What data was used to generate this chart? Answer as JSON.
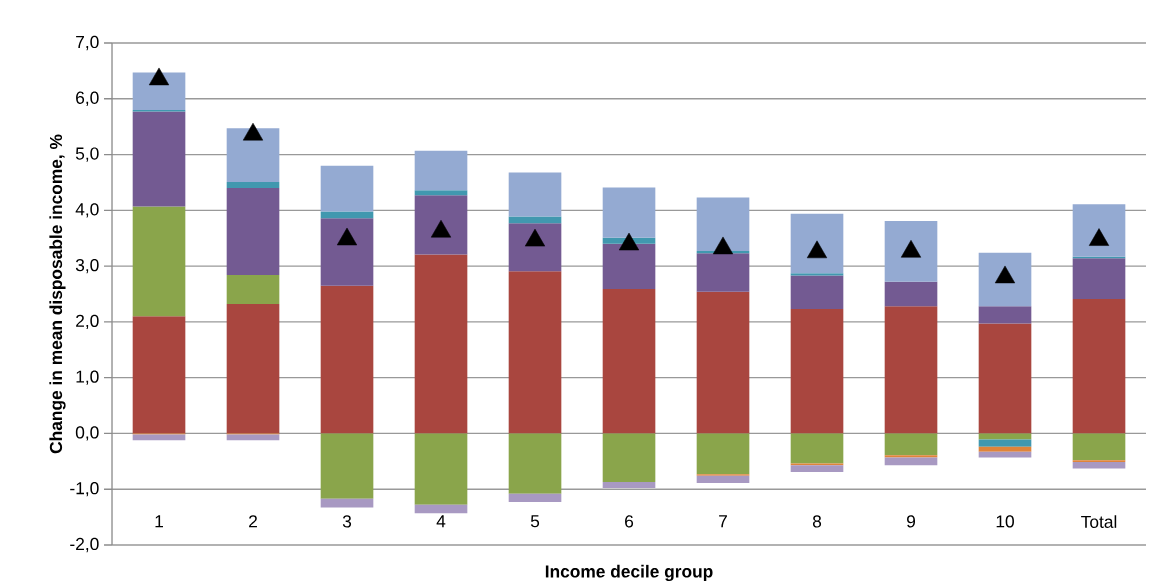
{
  "chart_data": {
    "type": "bar",
    "stacked": true,
    "xlabel": "Income decile group",
    "ylabel": "Change in mean disposable income, %",
    "categories": [
      "1",
      "2",
      "3",
      "4",
      "5",
      "6",
      "7",
      "8",
      "9",
      "10",
      "Total"
    ],
    "series": [
      {
        "color": "#a9463f",
        "values": [
          2.1,
          2.32,
          2.65,
          3.21,
          2.91,
          2.59,
          2.54,
          2.23,
          2.28,
          1.97,
          2.41
        ]
      },
      {
        "color": "#8aa54b",
        "values": [
          1.97,
          0.52,
          -1.17,
          -1.28,
          -1.08,
          -0.87,
          -0.73,
          -0.54,
          -0.39,
          -0.11,
          -0.48
        ]
      },
      {
        "color": "#735a92",
        "values": [
          1.7,
          1.56,
          1.21,
          1.06,
          0.86,
          0.81,
          0.69,
          0.6,
          0.44,
          0.31,
          0.73
        ]
      },
      {
        "color": "#4198af",
        "values": [
          0.03,
          0.11,
          0.12,
          0.09,
          0.12,
          0.11,
          0.04,
          0.04,
          null,
          -0.13,
          0.03
        ]
      },
      {
        "color": "#e0843a",
        "values": [
          -0.02,
          -0.02,
          null,
          null,
          null,
          null,
          -0.03,
          -0.03,
          -0.04,
          -0.09,
          -0.03
        ]
      },
      {
        "color": "#a899c2",
        "values": [
          -0.1,
          -0.1,
          -0.16,
          -0.15,
          -0.15,
          -0.11,
          -0.13,
          -0.12,
          -0.14,
          -0.1,
          -0.12
        ]
      },
      {
        "color": "#94aad2",
        "values": [
          0.67,
          0.96,
          0.82,
          0.71,
          0.79,
          0.9,
          0.96,
          1.07,
          1.09,
          0.96,
          0.94
        ]
      },
      {
        "type": "scatter",
        "marker": "triangle",
        "color": "#000000",
        "x": [
          "1",
          "2",
          "3",
          "4",
          "5",
          "6",
          "7",
          "8",
          "9",
          "10",
          "Total"
        ],
        "values": [
          6.35,
          5.36,
          3.48,
          3.62,
          3.46,
          3.39,
          3.32,
          3.25,
          3.26,
          2.8,
          3.47
        ]
      }
    ],
    "ylim": [
      -2,
      7
    ],
    "yticks": [
      {
        "value": -2,
        "label": "-2,0"
      },
      {
        "value": -1,
        "label": "-1,0"
      },
      {
        "value": 0,
        "label": "0,0"
      },
      {
        "value": 1,
        "label": "1,0"
      },
      {
        "value": 2,
        "label": "2,0"
      },
      {
        "value": 3,
        "label": "3,0"
      },
      {
        "value": 4,
        "label": "4,0"
      },
      {
        "value": 5,
        "label": "5,0"
      },
      {
        "value": 6,
        "label": "6,0"
      },
      {
        "value": 7,
        "label": "7,0"
      }
    ],
    "grid": "y"
  }
}
